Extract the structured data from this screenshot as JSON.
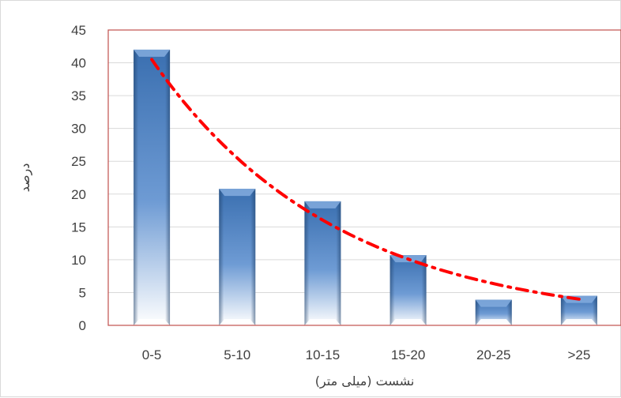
{
  "chart_data": {
    "type": "bar",
    "categories": [
      "0-5",
      "5-10",
      "10-15",
      "15-20",
      "20-25",
      ">25"
    ],
    "values": [
      42,
      20.8,
      18.9,
      10.7,
      3.9,
      4.5
    ],
    "title": "",
    "xlabel": "نشست (میلی متر)",
    "ylabel": "درصد",
    "ylim": [
      0,
      45
    ],
    "yticks": [
      0,
      5,
      10,
      15,
      20,
      25,
      30,
      35,
      40,
      45
    ],
    "grid": true,
    "legend": "none",
    "trendline": {
      "type": "exponential",
      "style": "dash-dot",
      "values": [
        40.5,
        26.5,
        16,
        9.6,
        6,
        4
      ]
    },
    "colors": {
      "bar_top": "#3a6fb0",
      "bar_bottom": "#ffffff",
      "bar_cap": "#7fa8dc",
      "trendline": "#ff0000",
      "plot_border": "#c0504d",
      "gridline": "#d9d9d9",
      "text": "#404040"
    }
  }
}
